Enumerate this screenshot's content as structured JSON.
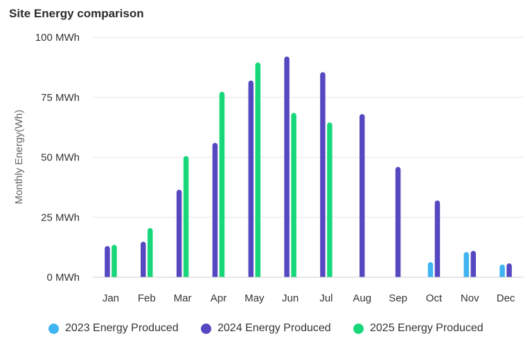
{
  "chart_data": {
    "type": "bar",
    "title": "Site Energy comparison",
    "xlabel": "",
    "ylabel": "Monthly Energy(Wh)",
    "ylim": [
      0,
      100
    ],
    "yticks": [
      0,
      25,
      50,
      75,
      100
    ],
    "ytick_labels": [
      "0 MWh",
      "25 MWh",
      "50 MWh",
      "75 MWh",
      "100 MWh"
    ],
    "grid": true,
    "legend_position": "bottom",
    "categories": [
      "Jan",
      "Feb",
      "Mar",
      "Apr",
      "May",
      "Jun",
      "Jul",
      "Aug",
      "Sep",
      "Oct",
      "Nov",
      "Dec"
    ],
    "series": [
      {
        "name": "2023 Energy Produced",
        "color": "#3fb4f0",
        "values": [
          null,
          null,
          null,
          null,
          null,
          null,
          null,
          null,
          null,
          6.3,
          10.5,
          5.3
        ]
      },
      {
        "name": "2024 Energy Produced",
        "color": "#5548c0",
        "values": [
          13.0,
          14.8,
          36.5,
          56.0,
          82.0,
          92.0,
          85.5,
          68.0,
          46.0,
          32.0,
          11.0,
          5.8
        ]
      },
      {
        "name": "2025 Energy Produced",
        "color": "#17d77a",
        "values": [
          13.5,
          20.5,
          50.5,
          77.3,
          89.5,
          68.5,
          64.5,
          null,
          null,
          null,
          null,
          null
        ]
      }
    ]
  }
}
